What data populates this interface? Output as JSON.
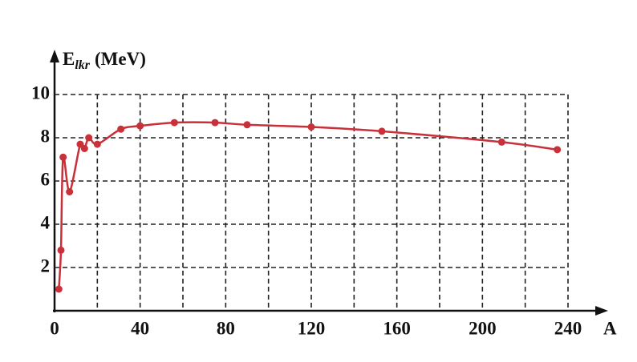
{
  "chart_data": {
    "type": "line",
    "ylabel": "E",
    "ylabel_sub": "lkr",
    "ylabel_unit": "(MeV)",
    "xlabel": "A",
    "x": [
      2,
      3,
      4,
      7,
      12,
      14,
      16,
      20,
      31,
      40,
      56,
      75,
      90,
      120,
      153,
      209,
      235
    ],
    "series": [
      {
        "color": "#c9303a",
        "values": [
          1.0,
          2.8,
          7.1,
          5.5,
          7.7,
          7.5,
          8.0,
          7.7,
          8.4,
          8.55,
          8.7,
          8.7,
          8.6,
          8.5,
          8.3,
          7.8,
          7.45
        ]
      }
    ],
    "xlim": [
      0,
      240
    ],
    "ylim": [
      0,
      10
    ],
    "xticks": [
      0,
      40,
      80,
      120,
      160,
      200,
      240
    ],
    "yticks": [
      2,
      4,
      6,
      8,
      10
    ],
    "xgrid": [
      20,
      40,
      60,
      80,
      100,
      120,
      140,
      160,
      180,
      200,
      220,
      240
    ],
    "grid": true
  }
}
